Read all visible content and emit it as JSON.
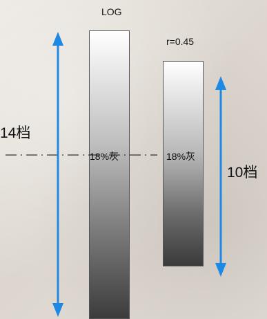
{
  "diagram": {
    "log_label": "LOG",
    "gamma_label": "r=0.45",
    "log_range_label": "14档",
    "gamma_range_label": "10档",
    "gray_label_log": "18%灰",
    "gray_label_gamma": "18%灰"
  },
  "colors": {
    "arrow": "#1e88e5",
    "dash_line": "#333333",
    "bar_border": "#555555"
  }
}
